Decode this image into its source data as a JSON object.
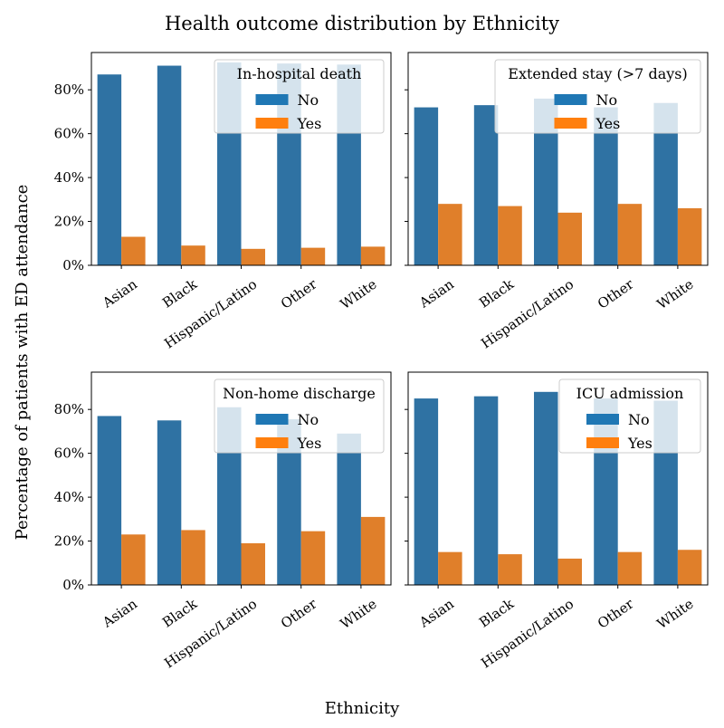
{
  "figure": {
    "title": "Health outcome distribution by Ethnicity",
    "xlabel": "Ethnicity",
    "ylabel": "Percentage of patients with ED attendance"
  },
  "colors": {
    "no": "#2f72a3",
    "yes": "#e07f2a",
    "legend_no": "#1f77b4",
    "legend_yes": "#ff7f0e"
  },
  "chart_data": [
    {
      "type": "bar",
      "legend_title": "In-hospital death",
      "legend_position": "top-right",
      "categories": [
        "Asian",
        "Black",
        "Hispanic/Latino",
        "Other",
        "White"
      ],
      "series": [
        {
          "name": "No",
          "values": [
            87,
            91,
            92.5,
            92,
            91.5
          ]
        },
        {
          "name": "Yes",
          "values": [
            13,
            9,
            7.5,
            8,
            8.5
          ]
        }
      ],
      "ylim": [
        0,
        97
      ],
      "yticks": [
        "0%",
        "20%",
        "40%",
        "60%",
        "80%"
      ],
      "ytick_values": [
        0,
        20,
        40,
        60,
        80
      ]
    },
    {
      "type": "bar",
      "legend_title": "Extended stay (>7 days)",
      "legend_position": "top-right",
      "categories": [
        "Asian",
        "Black",
        "Hispanic/Latino",
        "Other",
        "White"
      ],
      "series": [
        {
          "name": "No",
          "values": [
            72,
            73,
            76,
            72,
            74
          ]
        },
        {
          "name": "Yes",
          "values": [
            28,
            27,
            24,
            28,
            26
          ]
        }
      ],
      "ylim": [
        0,
        97
      ],
      "yticks": [],
      "ytick_values": [
        0,
        20,
        40,
        60,
        80
      ]
    },
    {
      "type": "bar",
      "legend_title": "Non-home discharge",
      "legend_position": "top-right",
      "categories": [
        "Asian",
        "Black",
        "Hispanic/Latino",
        "Other",
        "White"
      ],
      "series": [
        {
          "name": "No",
          "values": [
            77,
            75,
            81,
            75.5,
            69
          ]
        },
        {
          "name": "Yes",
          "values": [
            23,
            25,
            19,
            24.5,
            31
          ]
        }
      ],
      "ylim": [
        0,
        97
      ],
      "yticks": [
        "0%",
        "20%",
        "40%",
        "60%",
        "80%"
      ],
      "ytick_values": [
        0,
        20,
        40,
        60,
        80
      ]
    },
    {
      "type": "bar",
      "legend_title": "ICU admission",
      "legend_position": "top-right",
      "categories": [
        "Asian",
        "Black",
        "Hispanic/Latino",
        "Other",
        "White"
      ],
      "series": [
        {
          "name": "No",
          "values": [
            85,
            86,
            88,
            85,
            84
          ]
        },
        {
          "name": "Yes",
          "values": [
            15,
            14,
            12,
            15,
            16
          ]
        }
      ],
      "ylim": [
        0,
        97
      ],
      "yticks": [],
      "ytick_values": [
        0,
        20,
        40,
        60,
        80
      ]
    }
  ]
}
